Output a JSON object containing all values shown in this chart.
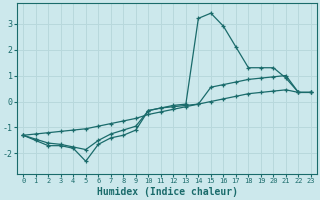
{
  "xlabel": "Humidex (Indice chaleur)",
  "ylabel": "",
  "xlim": [
    -0.5,
    23.5
  ],
  "ylim": [
    -2.8,
    3.8
  ],
  "xticks": [
    0,
    1,
    2,
    3,
    4,
    5,
    6,
    7,
    8,
    9,
    10,
    11,
    12,
    13,
    14,
    15,
    16,
    17,
    18,
    19,
    20,
    21,
    22,
    23
  ],
  "yticks": [
    -2,
    -1,
    0,
    1,
    2,
    3
  ],
  "bg_color": "#cce8ec",
  "line_color": "#1a6b6b",
  "grid_color": "#b8d8dc",
  "line1_x": [
    0,
    1,
    2,
    3,
    4,
    5,
    6,
    7,
    8,
    9,
    10,
    11,
    12,
    13,
    14,
    15,
    16,
    17,
    18,
    19,
    20,
    21,
    22,
    23
  ],
  "line1_y": [
    -1.3,
    -1.5,
    -1.7,
    -1.7,
    -1.8,
    -2.3,
    -1.65,
    -1.4,
    -1.3,
    -1.1,
    -0.35,
    -0.25,
    -0.15,
    -0.1,
    3.2,
    3.4,
    2.9,
    2.1,
    1.3,
    1.3,
    1.3,
    0.9,
    0.35,
    0.35
  ],
  "line2_x": [
    0,
    1,
    2,
    3,
    4,
    5,
    6,
    7,
    8,
    9,
    10,
    11,
    12,
    13,
    14,
    15,
    16,
    17,
    18,
    19,
    20,
    21,
    22,
    23
  ],
  "line2_y": [
    -1.3,
    -1.45,
    -1.6,
    -1.65,
    -1.75,
    -1.85,
    -1.5,
    -1.25,
    -1.1,
    -0.95,
    -0.35,
    -0.25,
    -0.2,
    -0.15,
    -0.1,
    0.55,
    0.65,
    0.75,
    0.85,
    0.9,
    0.95,
    1.0,
    0.35,
    0.35
  ],
  "line3_x": [
    0,
    1,
    2,
    3,
    4,
    5,
    6,
    7,
    8,
    9,
    10,
    11,
    12,
    13,
    14,
    15,
    16,
    17,
    18,
    19,
    20,
    21,
    22,
    23
  ],
  "line3_y": [
    -1.3,
    -1.25,
    -1.2,
    -1.15,
    -1.1,
    -1.05,
    -0.95,
    -0.85,
    -0.75,
    -0.65,
    -0.5,
    -0.4,
    -0.3,
    -0.2,
    -0.1,
    0.0,
    0.1,
    0.2,
    0.3,
    0.35,
    0.4,
    0.45,
    0.35,
    0.35
  ]
}
